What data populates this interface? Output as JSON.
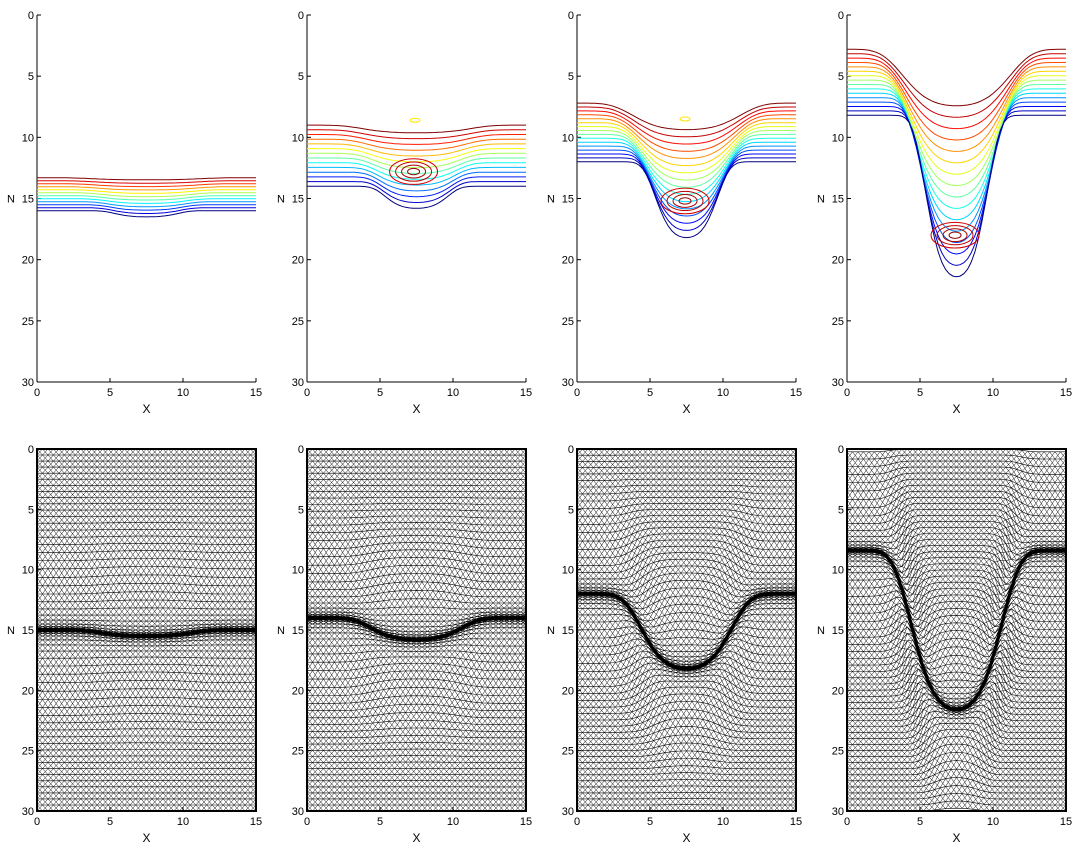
{
  "chart_data": [
    {
      "type": "contour",
      "xlabel": "X",
      "ylabel": "N",
      "xlim": [
        0,
        15
      ],
      "ylim": [
        0,
        30
      ],
      "y_reversed": true,
      "xticks": [
        "0",
        "5",
        "10",
        "15"
      ],
      "yticks": [
        "0",
        "5",
        "10",
        "15",
        "20",
        "25",
        "30"
      ],
      "trough_x": 7.5,
      "depth": 0.5,
      "top_y": 13.3,
      "bottom_y": 16.0,
      "levels": 12,
      "colormap": "jet"
    },
    {
      "type": "contour",
      "xlabel": "X",
      "ylabel": "N",
      "xlim": [
        0,
        15
      ],
      "ylim": [
        0,
        30
      ],
      "y_reversed": true,
      "xticks": [
        "0",
        "5",
        "10",
        "15"
      ],
      "yticks": [
        "0",
        "5",
        "10",
        "15",
        "20",
        "25",
        "30"
      ],
      "trough_x": 7.5,
      "depth": 1.8,
      "top_y": 9.0,
      "bottom_y": 14.0,
      "levels": 14,
      "colormap": "jet",
      "vortex_center": [
        7.3,
        12.8
      ],
      "small_loop": [
        7.4,
        8.6
      ]
    },
    {
      "type": "contour",
      "xlabel": "X",
      "ylabel": "N",
      "xlim": [
        0,
        15
      ],
      "ylim": [
        0,
        30
      ],
      "y_reversed": true,
      "xticks": [
        "0",
        "5",
        "10",
        "15"
      ],
      "yticks": [
        "0",
        "5",
        "10",
        "15",
        "20",
        "25",
        "30"
      ],
      "trough_x": 7.5,
      "depth": 6.2,
      "top_y": 7.2,
      "bottom_y": 12.0,
      "levels": 16,
      "colormap": "jet",
      "vortex_center": [
        7.4,
        15.2
      ],
      "small_loop": [
        7.4,
        8.5
      ]
    },
    {
      "type": "contour",
      "xlabel": "X",
      "ylabel": "N",
      "xlim": [
        0,
        15
      ],
      "ylim": [
        0,
        30
      ],
      "y_reversed": true,
      "xticks": [
        "0",
        "5",
        "10",
        "15"
      ],
      "yticks": [
        "0",
        "5",
        "10",
        "15",
        "20",
        "25",
        "30"
      ],
      "trough_x": 7.5,
      "depth": 13.2,
      "top_y": 2.8,
      "bottom_y": 8.2,
      "levels": 16,
      "colormap": "jet",
      "vortex_center": [
        7.4,
        18.0
      ]
    },
    {
      "type": "mesh",
      "xlabel": "X",
      "ylabel": "N",
      "xlim": [
        0,
        15
      ],
      "ylim": [
        0,
        30
      ],
      "y_reversed": true,
      "xticks": [
        "0",
        "5",
        "10",
        "15"
      ],
      "yticks": [
        "0",
        "5",
        "10",
        "15",
        "20",
        "25",
        "30"
      ],
      "front_y": 15.0,
      "depth": 0.5
    },
    {
      "type": "mesh",
      "xlabel": "X",
      "ylabel": "N",
      "xlim": [
        0,
        15
      ],
      "ylim": [
        0,
        30
      ],
      "y_reversed": true,
      "xticks": [
        "0",
        "5",
        "10",
        "15"
      ],
      "yticks": [
        "0",
        "5",
        "10",
        "15",
        "20",
        "25",
        "30"
      ],
      "front_y": 14.0,
      "depth": 1.8
    },
    {
      "type": "mesh",
      "xlabel": "X",
      "ylabel": "N",
      "xlim": [
        0,
        15
      ],
      "ylim": [
        0,
        30
      ],
      "y_reversed": true,
      "xticks": [
        "0",
        "5",
        "10",
        "15"
      ],
      "yticks": [
        "0",
        "5",
        "10",
        "15",
        "20",
        "25",
        "30"
      ],
      "front_y": 12.0,
      "depth": 6.2
    },
    {
      "type": "mesh",
      "xlabel": "X",
      "ylabel": "N",
      "xlim": [
        0,
        15
      ],
      "ylim": [
        0,
        30
      ],
      "y_reversed": true,
      "xticks": [
        "0",
        "5",
        "10",
        "15"
      ],
      "yticks": [
        "0",
        "5",
        "10",
        "15",
        "20",
        "25",
        "30"
      ],
      "front_y": 8.4,
      "depth": 13.2
    }
  ]
}
